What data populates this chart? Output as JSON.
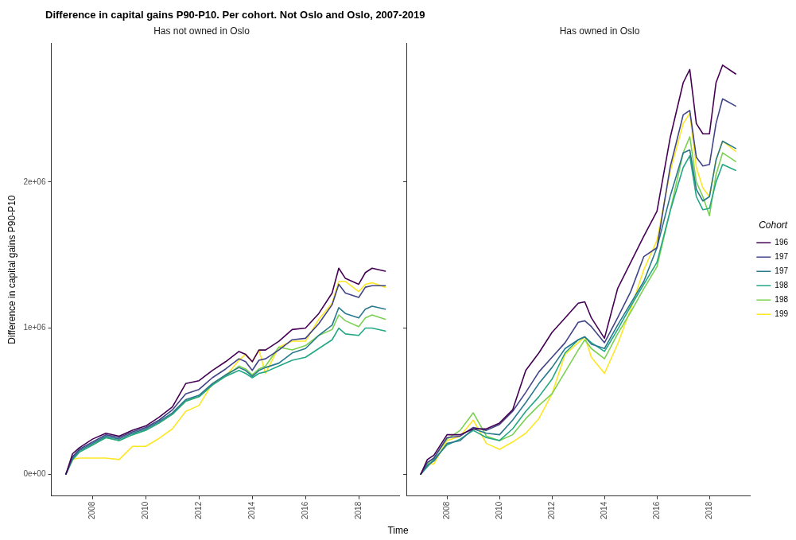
{
  "chart_data": [
    {
      "type": "line",
      "title": "Difference in capital gains P90-P10. Per cohort. Not Oslo and Oslo, 2007-2019",
      "subtitle": "Has not owned in Oslo",
      "xlabel": "Time",
      "ylabel": "Difference in capital gains P90-P10",
      "x": [
        2007,
        2007.25,
        2007.5,
        2008,
        2008.5,
        2009,
        2009.5,
        2010,
        2010.5,
        2011,
        2011.5,
        2012,
        2012.5,
        2013,
        2013.5,
        2013.75,
        2014,
        2014.25,
        2014.5,
        2015,
        2015.5,
        2016,
        2016.5,
        2017,
        2017.25,
        2017.5,
        2018,
        2018.25,
        2018.5,
        2019
      ],
      "series": [
        {
          "color": "#440154",
          "values": [
            0,
            140000,
            180000,
            240000,
            280000,
            260000,
            300000,
            330000,
            390000,
            460000,
            620000,
            640000,
            710000,
            770000,
            840000,
            820000,
            770000,
            850000,
            850000,
            910000,
            990000,
            1000000,
            1100000,
            1240000,
            1410000,
            1340000,
            1300000,
            1380000,
            1410000,
            1390000
          ]
        },
        {
          "color": "#414487",
          "values": [
            0,
            120000,
            170000,
            220000,
            270000,
            250000,
            290000,
            320000,
            370000,
            440000,
            550000,
            580000,
            660000,
            720000,
            790000,
            770000,
            710000,
            780000,
            790000,
            850000,
            920000,
            930000,
            1030000,
            1160000,
            1300000,
            1240000,
            1210000,
            1280000,
            1290000,
            1290000
          ]
        },
        {
          "color": "#2a788e",
          "values": [
            0,
            110000,
            160000,
            210000,
            260000,
            240000,
            280000,
            310000,
            360000,
            420000,
            510000,
            540000,
            620000,
            680000,
            730000,
            710000,
            670000,
            710000,
            730000,
            760000,
            830000,
            860000,
            950000,
            1020000,
            1140000,
            1100000,
            1070000,
            1130000,
            1150000,
            1130000
          ]
        },
        {
          "color": "#22a884",
          "values": [
            0,
            100000,
            150000,
            200000,
            250000,
            230000,
            270000,
            300000,
            350000,
            410000,
            500000,
            530000,
            610000,
            670000,
            710000,
            690000,
            660000,
            690000,
            700000,
            740000,
            780000,
            800000,
            860000,
            920000,
            1000000,
            960000,
            950000,
            1000000,
            1000000,
            980000
          ]
        },
        {
          "color": "#7ad151",
          "values": [
            0,
            100000,
            150000,
            200000,
            250000,
            230000,
            270000,
            300000,
            350000,
            410000,
            500000,
            530000,
            610000,
            670000,
            740000,
            720000,
            680000,
            720000,
            740000,
            870000,
            850000,
            880000,
            950000,
            990000,
            1090000,
            1050000,
            1010000,
            1070000,
            1090000,
            1060000
          ]
        },
        {
          "color": "#fde725",
          "values": [
            0,
            100000,
            110000,
            110000,
            110000,
            100000,
            190000,
            190000,
            245000,
            310000,
            430000,
            470000,
            620000,
            670000,
            780000,
            820000,
            770000,
            850000,
            690000,
            870000,
            910000,
            910000,
            1060000,
            1170000,
            1320000,
            1320000,
            1250000,
            1300000,
            1310000,
            1280000
          ]
        }
      ],
      "xlim": [
        2006.45,
        2019.55
      ],
      "xticks": [
        2008,
        2010,
        2012,
        2014,
        2016,
        2018
      ],
      "ylim": [
        -150000,
        2950000
      ],
      "yticks": [
        {
          "value": 0,
          "label": "0e+00"
        },
        {
          "value": 1000000,
          "label": "1e+06"
        },
        {
          "value": 2000000,
          "label": "2e+06"
        }
      ],
      "grid": false,
      "legend": false
    },
    {
      "type": "line",
      "subtitle": "Has owned in Oslo",
      "legend_title": "Cohort",
      "x": [
        2007,
        2007.25,
        2007.5,
        2008,
        2008.5,
        2009,
        2009.5,
        2010,
        2010.5,
        2011,
        2011.5,
        2012,
        2012.5,
        2013,
        2013.25,
        2013.5,
        2014,
        2014.5,
        2015,
        2015.5,
        2016,
        2016.5,
        2017,
        2017.25,
        2017.5,
        2017.75,
        2018,
        2018.25,
        2018.5,
        2019
      ],
      "series": [
        {
          "name": "196",
          "color": "#440154",
          "values": [
            0,
            100000,
            130000,
            270000,
            270000,
            310000,
            310000,
            350000,
            440000,
            710000,
            830000,
            970000,
            1070000,
            1170000,
            1180000,
            1070000,
            930000,
            1270000,
            1450000,
            1630000,
            1800000,
            2300000,
            2680000,
            2770000,
            2400000,
            2330000,
            2330000,
            2680000,
            2800000,
            2740000
          ]
        },
        {
          "name": "197",
          "color": "#414487",
          "values": [
            0,
            80000,
            110000,
            250000,
            260000,
            320000,
            300000,
            340000,
            430000,
            560000,
            700000,
            800000,
            900000,
            1040000,
            1050000,
            1010000,
            900000,
            1070000,
            1250000,
            1490000,
            1550000,
            2100000,
            2460000,
            2490000,
            2170000,
            2110000,
            2120000,
            2400000,
            2570000,
            2520000
          ]
        },
        {
          "name": "197",
          "color": "#2a788e",
          "values": [
            0,
            60000,
            90000,
            210000,
            230000,
            310000,
            280000,
            270000,
            370000,
            490000,
            620000,
            730000,
            860000,
            920000,
            940000,
            890000,
            860000,
            1020000,
            1170000,
            1320000,
            1550000,
            1900000,
            2200000,
            2220000,
            1950000,
            1870000,
            1900000,
            2150000,
            2280000,
            2230000
          ]
        },
        {
          "name": "198",
          "color": "#22a884",
          "values": [
            0,
            50000,
            100000,
            200000,
            240000,
            300000,
            250000,
            230000,
            310000,
            430000,
            530000,
            650000,
            830000,
            920000,
            940000,
            900000,
            840000,
            990000,
            1150000,
            1300000,
            1450000,
            1800000,
            2100000,
            2180000,
            1900000,
            1810000,
            1820000,
            2000000,
            2120000,
            2080000
          ]
        },
        {
          "name": "198",
          "color": "#7ad151",
          "values": [
            0,
            70000,
            110000,
            240000,
            300000,
            420000,
            260000,
            230000,
            270000,
            380000,
            470000,
            550000,
            700000,
            850000,
            920000,
            860000,
            790000,
            960000,
            1110000,
            1270000,
            1420000,
            1800000,
            2200000,
            2310000,
            2000000,
            1900000,
            1770000,
            2050000,
            2200000,
            2140000
          ]
        },
        {
          "name": "199",
          "color": "#fde725",
          "values": [
            0,
            70000,
            70000,
            230000,
            260000,
            370000,
            210000,
            170000,
            220000,
            280000,
            380000,
            550000,
            820000,
            900000,
            940000,
            800000,
            690000,
            890000,
            1130000,
            1400000,
            1600000,
            2070000,
            2400000,
            2470000,
            2100000,
            1960000,
            1900000,
            2150000,
            2280000,
            2210000
          ]
        }
      ],
      "xlim": [
        2006.45,
        2019.55
      ],
      "xticks": [
        2008,
        2010,
        2012,
        2014,
        2016,
        2018
      ],
      "ylim": [
        -150000,
        2950000
      ],
      "yticks": [
        {
          "value": 0,
          "label": null
        },
        {
          "value": 1000000,
          "label": null
        },
        {
          "value": 2000000,
          "label": null
        }
      ],
      "tick_labels": "x",
      "grid": false,
      "legend": "right"
    }
  ]
}
